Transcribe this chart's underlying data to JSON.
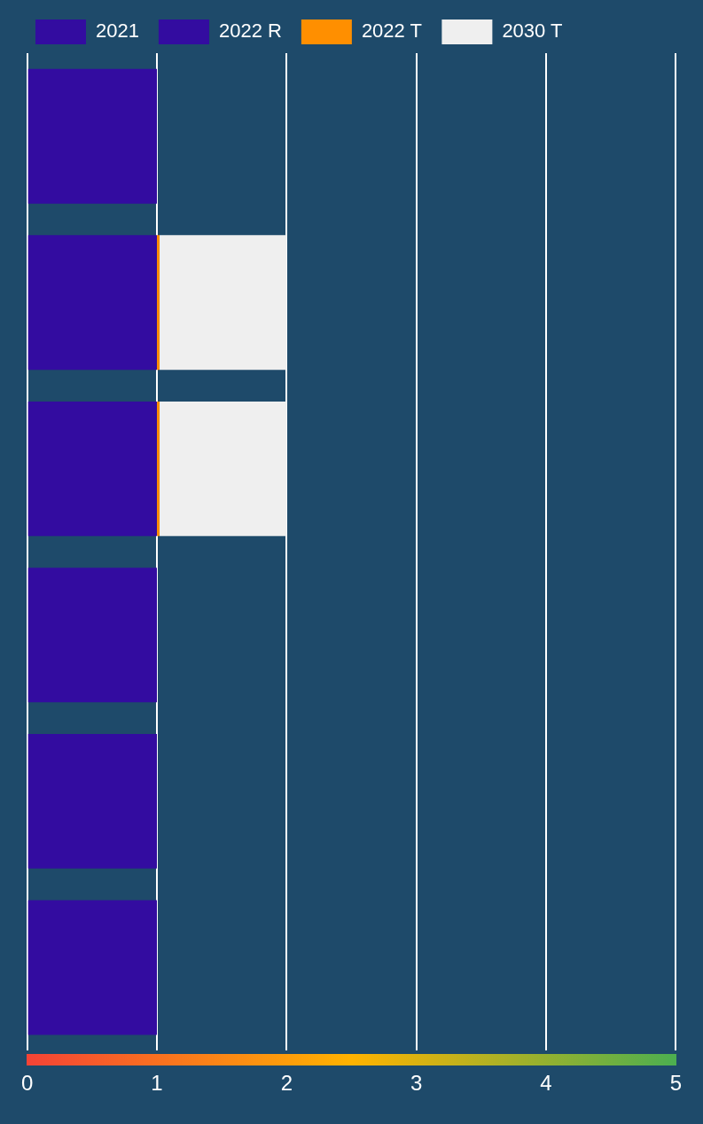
{
  "chart_data": {
    "type": "bar",
    "orientation": "horizontal",
    "stacked": true,
    "categories": [
      null,
      null,
      null,
      null,
      null,
      null
    ],
    "series": [
      {
        "name": "2021",
        "color": "#330ca0",
        "values": [
          1,
          1,
          1,
          1,
          1,
          1
        ]
      },
      {
        "name": "2022 R",
        "color": "#330ca0",
        "values": [
          0,
          0,
          0,
          0,
          0,
          0
        ]
      },
      {
        "name": "2022 T",
        "color": "#ff8f00",
        "values": [
          0,
          0.02,
          0.02,
          0,
          0,
          0
        ]
      },
      {
        "name": "2030 T",
        "color": "#efefef",
        "values": [
          0,
          0.98,
          0.98,
          0,
          0,
          0
        ]
      }
    ],
    "xlim": [
      0,
      5
    ],
    "xticks": [
      0,
      1,
      2,
      3,
      4,
      5
    ],
    "grid": "x",
    "legend": "top left"
  }
}
